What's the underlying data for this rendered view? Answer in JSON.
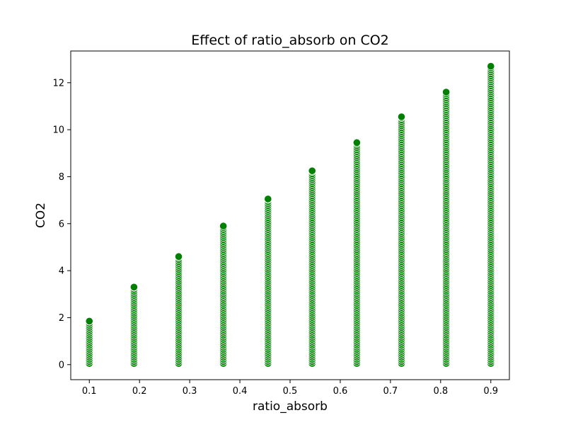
{
  "chart_data": {
    "type": "scatter",
    "title": "Effect of ratio_absorb on CO2",
    "xlabel": "ratio_absorb",
    "ylabel": "CO2",
    "xlim": [
      0.063,
      0.937
    ],
    "ylim": [
      -0.64,
      13.35
    ],
    "xticks": [
      0.1,
      0.2,
      0.3,
      0.4,
      0.5,
      0.6,
      0.7,
      0.8,
      0.9
    ],
    "xtick_labels": [
      "0.1",
      "0.2",
      "0.3",
      "0.4",
      "0.5",
      "0.6",
      "0.7",
      "0.8",
      "0.9"
    ],
    "yticks": [
      0,
      2,
      4,
      6,
      8,
      10,
      12
    ],
    "ytick_labels": [
      "0",
      "2",
      "4",
      "6",
      "8",
      "10",
      "12"
    ],
    "grid": false,
    "marker_color": "#008000",
    "marker_edge_color": "#ffffff",
    "x_values": [
      0.1,
      0.189,
      0.278,
      0.367,
      0.456,
      0.544,
      0.633,
      0.722,
      0.811,
      0.9
    ],
    "y_max_per_x": [
      1.85,
      3.3,
      4.6,
      5.9,
      7.05,
      8.25,
      9.45,
      10.55,
      11.6,
      12.7
    ],
    "y_min_per_x": [
      0.05,
      0.05,
      0.05,
      0.05,
      0.05,
      0.05,
      0.05,
      0.05,
      0.05,
      0.05
    ]
  }
}
